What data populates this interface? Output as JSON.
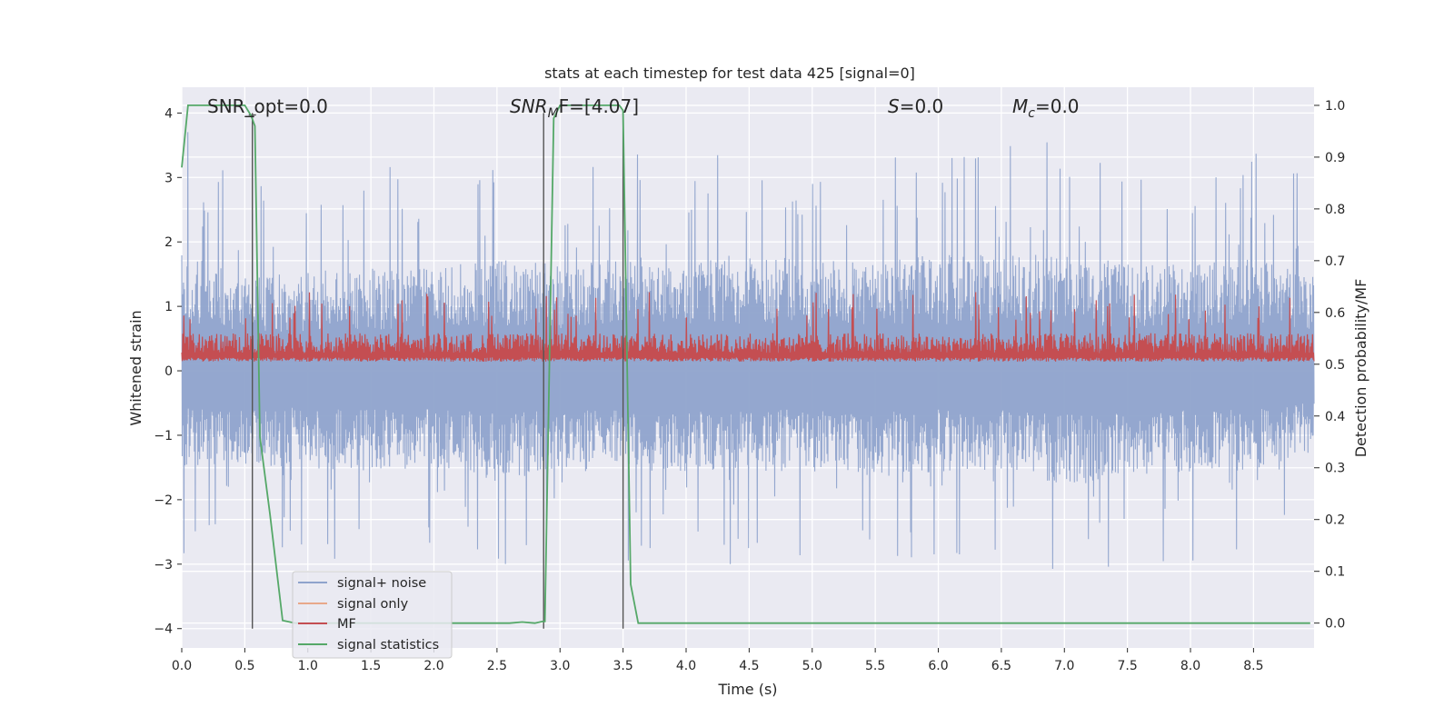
{
  "chart_data": {
    "type": "line",
    "title": "stats at each timestep for test data 425 [signal=0]",
    "xlabel": "Time (s)",
    "ylabel": "Whitened strain",
    "y2label": "Detection probability/MF",
    "xlim": [
      0.0,
      8.98
    ],
    "ylim": [
      -4.3,
      4.4
    ],
    "y2lim": [
      -0.048,
      1.035
    ],
    "x_ticks": [
      0.0,
      0.5,
      1.0,
      1.5,
      2.0,
      2.5,
      3.0,
      3.5,
      4.0,
      4.5,
      5.0,
      5.5,
      6.0,
      6.5,
      7.0,
      7.5,
      8.0,
      8.5
    ],
    "x_tick_labels": [
      "0.0",
      "0.5",
      "1.0",
      "1.5",
      "2.0",
      "2.5",
      "3.0",
      "3.5",
      "4.0",
      "4.5",
      "5.0",
      "5.5",
      "6.0",
      "6.5",
      "7.0",
      "7.5",
      "8.0",
      "8.5"
    ],
    "y_ticks": [
      4,
      3,
      2,
      1,
      0,
      -1,
      -2,
      -3,
      -4
    ],
    "y_tick_labels": [
      "4",
      "3",
      "2",
      "1",
      "0",
      "−1",
      "−2",
      "−3",
      "−4"
    ],
    "y2_ticks": [
      1.0,
      0.9,
      0.8,
      0.7,
      0.6,
      0.5,
      0.4,
      0.3,
      0.2,
      0.1,
      0.0
    ],
    "y2_tick_labels": [
      "1.0",
      "0.9",
      "0.8",
      "0.7",
      "0.6",
      "0.5",
      "0.4",
      "0.3",
      "0.2",
      "0.1",
      "0.0"
    ],
    "grid": true,
    "legend_position": "lower-left",
    "legend": [
      {
        "name": "signal+ noise",
        "color": "#8fa3cc"
      },
      {
        "name": "signal only",
        "color": "#e8a88a"
      },
      {
        "name": "MF",
        "color": "#c44e52"
      },
      {
        "name": "signal statistics",
        "color": "#55a868"
      }
    ],
    "annotations": {
      "snr_opt_prefix": "SNR_opt=",
      "snr_opt_value": "0.0",
      "snr_mf_symbol": "SNR",
      "snr_mf_sub": "M",
      "snr_mf_rest": "F=[4.07]",
      "s_symbol": "S",
      "s_value": "=0.0",
      "mc_symbol": "M",
      "mc_sub": "c",
      "mc_value": "=0.0"
    },
    "vertical_lines_x": [
      0.56,
      2.87,
      3.5
    ],
    "series": [
      {
        "name": "signal+ noise",
        "axis": "left",
        "envelope_x": [
          0.0,
          0.5,
          1.0,
          1.5,
          2.0,
          2.5,
          3.0,
          3.5,
          4.0,
          4.5,
          5.0,
          5.5,
          6.0,
          6.5,
          7.0,
          7.5,
          8.0,
          8.5,
          8.98
        ],
        "envelope_upper": [
          3.8,
          2.9,
          3.1,
          3.2,
          3.2,
          3.5,
          3.3,
          3.6,
          3.3,
          3.7,
          3.4,
          3.5,
          3.6,
          3.6,
          3.7,
          3.3,
          3.4,
          3.5,
          3.1
        ],
        "envelope_lower": [
          -2.9,
          -2.8,
          -2.9,
          -3.0,
          -2.9,
          -3.3,
          -3.0,
          -3.0,
          -3.0,
          -3.0,
          -3.0,
          -3.2,
          -3.0,
          -3.0,
          -3.4,
          -3.3,
          -3.0,
          -3.0,
          -2.4
        ]
      },
      {
        "name": "MF",
        "axis": "right",
        "baseline": 0.505,
        "typical_peak": 0.56,
        "max_peak": 0.64
      },
      {
        "name": "signal statistics",
        "axis": "right",
        "x": [
          0.0,
          0.05,
          0.1,
          0.3,
          0.5,
          0.55,
          0.58,
          0.62,
          0.7,
          0.8,
          0.9,
          1.0,
          2.0,
          2.6,
          2.7,
          2.8,
          2.86,
          2.88,
          2.95,
          3.0,
          3.3,
          3.47,
          3.5,
          3.56,
          3.62,
          4.0,
          5.0,
          6.0,
          7.0,
          8.0,
          8.95
        ],
        "y": [
          0.88,
          1.0,
          1.0,
          1.0,
          1.0,
          0.98,
          0.96,
          0.36,
          0.21,
          0.005,
          0.0,
          0.0,
          0.0,
          0.0,
          0.002,
          0.0,
          0.003,
          0.003,
          0.975,
          1.0,
          1.0,
          1.0,
          0.99,
          0.075,
          0.0,
          0.0,
          0.0,
          0.0,
          0.0,
          0.0,
          0.0
        ]
      }
    ]
  }
}
